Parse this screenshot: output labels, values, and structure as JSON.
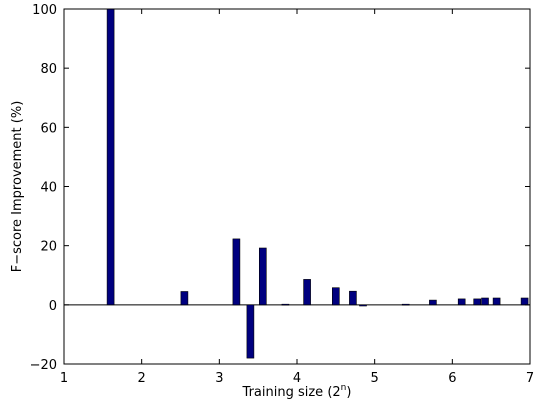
{
  "chart_data": {
    "type": "bar",
    "xlabel_main": "Training size (2",
    "xlabel_sup": "n",
    "xlabel_end": ")",
    "ylabel": "F−score Improvement (%)",
    "xlim": [
      1,
      7
    ],
    "ylim": [
      -20,
      100
    ],
    "xticks": [
      1,
      2,
      3,
      4,
      5,
      6,
      7
    ],
    "yticks": [
      -20,
      0,
      20,
      40,
      60,
      80,
      100
    ],
    "ytick_labels": [
      "−20",
      "0",
      "20",
      "40",
      "60",
      "80",
      "100"
    ],
    "bar_color": "#00007f",
    "bar_outline": "#000000",
    "zero_line": true,
    "bars": [
      {
        "x": 1.6,
        "y": 100
      },
      {
        "x": 2.55,
        "y": 4.5
      },
      {
        "x": 3.22,
        "y": 22.3
      },
      {
        "x": 3.4,
        "y": -18.0
      },
      {
        "x": 3.56,
        "y": 19.2
      },
      {
        "x": 3.85,
        "y": 0.2
      },
      {
        "x": 4.13,
        "y": 8.6
      },
      {
        "x": 4.5,
        "y": 5.8
      },
      {
        "x": 4.72,
        "y": 4.6
      },
      {
        "x": 4.85,
        "y": -0.4
      },
      {
        "x": 5.4,
        "y": 0.2
      },
      {
        "x": 5.75,
        "y": 1.6
      },
      {
        "x": 6.12,
        "y": 2.0
      },
      {
        "x": 6.32,
        "y": 2.0
      },
      {
        "x": 6.42,
        "y": 2.3
      },
      {
        "x": 6.57,
        "y": 2.3
      },
      {
        "x": 6.93,
        "y": 2.3
      }
    ]
  }
}
